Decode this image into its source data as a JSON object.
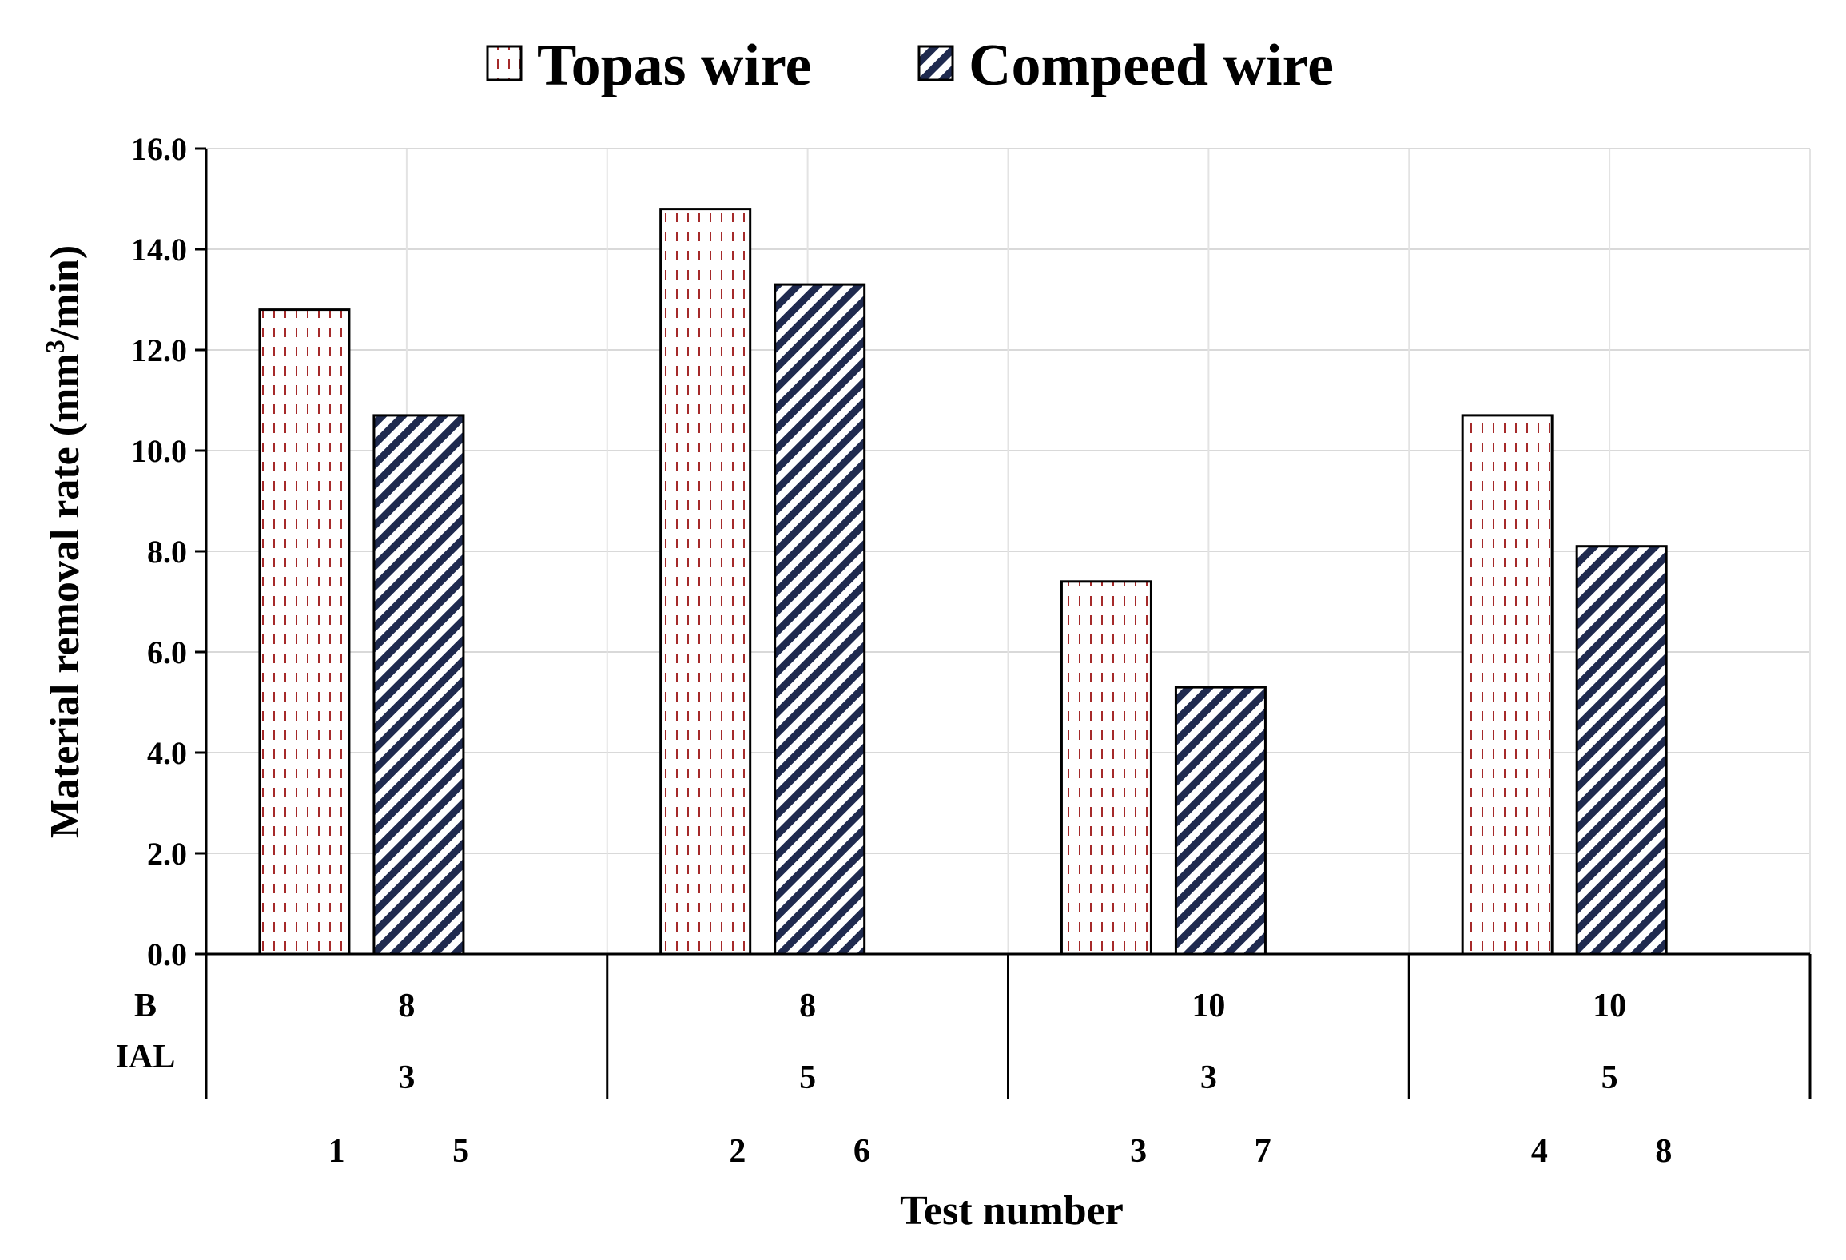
{
  "chart_data": {
    "type": "bar",
    "title": "",
    "xlabel": "Test number",
    "ylabel": "Material removal rate (mm³/min)",
    "ylim": [
      0,
      16
    ],
    "yticks": [
      "0.0",
      "2.0",
      "4.0",
      "6.0",
      "8.0",
      "10.0",
      "12.0",
      "14.0",
      "16.0"
    ],
    "grid": true,
    "legend_position": "top",
    "groups": [
      {
        "B": "8",
        "IAL": "3",
        "tests": [
          "1",
          "5"
        ]
      },
      {
        "B": "8",
        "IAL": "5",
        "tests": [
          "2",
          "6"
        ]
      },
      {
        "B": "10",
        "IAL": "3",
        "tests": [
          "3",
          "7"
        ]
      },
      {
        "B": "10",
        "IAL": "5",
        "tests": [
          "4",
          "8"
        ]
      }
    ],
    "row_labels": {
      "B": "B",
      "IAL": "IAL"
    },
    "series": [
      {
        "name": "Topas wire",
        "values": [
          12.8,
          14.8,
          7.4,
          10.7
        ],
        "color": "#a52a2a"
      },
      {
        "name": "Compeed wire",
        "values": [
          10.7,
          13.3,
          5.3,
          8.1
        ],
        "color": "#1f2a4f"
      }
    ]
  }
}
